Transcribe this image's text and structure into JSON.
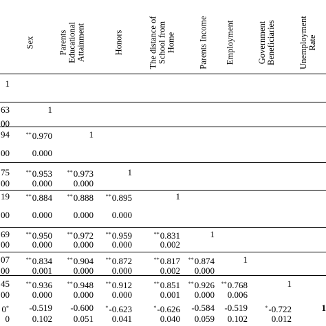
{
  "headers": [
    {
      "lines": [
        "Sex"
      ]
    },
    {
      "lines": [
        "Parents",
        "Educational",
        "Attainment"
      ]
    },
    {
      "lines": [
        "Honors"
      ]
    },
    {
      "lines": [
        "The distance of",
        "School from",
        "Home"
      ]
    },
    {
      "lines": [
        "Parents Income"
      ]
    },
    {
      "lines": [
        "Employment"
      ]
    },
    {
      "lines": [
        "Government",
        "Beneficiaries"
      ]
    },
    {
      "lines": [
        "Unemployment",
        "Rate"
      ]
    }
  ],
  "header_cut": "...",
  "rows": [
    [
      {
        "t": "1"
      }
    ],
    [
      {
        "t": "63"
      },
      {
        "t": "1"
      }
    ],
    [
      {
        "t": "00"
      }
    ],
    [
      {
        "t": "94"
      },
      {
        "m": "**",
        "t": "0.970"
      },
      {
        "t": "1"
      }
    ],
    [
      {
        "t": "00"
      },
      {
        "t": "0.000"
      }
    ],
    [
      {
        "t": "75"
      },
      {
        "m": "**",
        "t": "0.953"
      },
      {
        "m": "**",
        "t": "0.973"
      },
      {
        "t": "1"
      }
    ],
    [
      {
        "t": "00"
      },
      {
        "t": "0.000"
      },
      {
        "t": "0.000"
      }
    ],
    [
      {
        "t": "19"
      },
      {
        "m": "**",
        "t": "0.884"
      },
      {
        "m": "**",
        "t": "0.888"
      },
      {
        "m": "**",
        "t": "0.895"
      },
      {
        "t": "1"
      }
    ],
    [
      {
        "t": "00"
      },
      {
        "t": "0.000"
      },
      {
        "t": "0.000"
      },
      {
        "t": "0.000"
      }
    ],
    [
      {
        "t": "69"
      },
      {
        "m": "**",
        "t": "0.950"
      },
      {
        "m": "**",
        "t": "0.972"
      },
      {
        "m": "**",
        "t": "0.959"
      },
      {
        "m": "**",
        "t": "0.831"
      },
      {
        "t": "1"
      }
    ],
    [
      {
        "t": "00"
      },
      {
        "t": "0.000"
      },
      {
        "t": "0.000"
      },
      {
        "t": "0.000"
      },
      {
        "t": "0.002"
      }
    ],
    [
      {
        "t": "07"
      },
      {
        "m": "**",
        "t": "0.834"
      },
      {
        "m": "**",
        "t": "0.904"
      },
      {
        "m": "**",
        "t": "0.872"
      },
      {
        "m": "**",
        "t": "0.817"
      },
      {
        "m": "**",
        "t": "0.874"
      },
      {
        "t": "1"
      }
    ],
    [
      {
        "t": "00"
      },
      {
        "t": "0.001"
      },
      {
        "t": "0.000"
      },
      {
        "t": "0.000"
      },
      {
        "t": "0.002"
      },
      {
        "t": "0.000"
      }
    ],
    [
      {
        "t": "45"
      },
      {
        "m": "**",
        "t": "0.936"
      },
      {
        "m": "**",
        "t": "0.948"
      },
      {
        "m": "**",
        "t": "0.912"
      },
      {
        "m": "**",
        "t": "0.851"
      },
      {
        "m": "**",
        "t": "0.926"
      },
      {
        "m": "**",
        "t": "0.768"
      },
      {
        "t": "1"
      }
    ],
    [
      {
        "t": "00"
      },
      {
        "t": "0.000"
      },
      {
        "t": "0.000"
      },
      {
        "t": "0.000"
      },
      {
        "t": "0.001"
      },
      {
        "t": "0.000"
      },
      {
        "t": "0.006"
      }
    ],
    [
      {
        "t": "0",
        "m2": "*"
      },
      {
        "t": "-0.519"
      },
      {
        "t": "-0.600"
      },
      {
        "m": "*",
        "t": "-0.623"
      },
      {
        "m": "*",
        "t": "-0.626"
      },
      {
        "t": "-0.584"
      },
      {
        "t": "-0.519"
      },
      {
        "m": "*",
        "t": "-0.722"
      },
      {
        "t": "1",
        "bold": true
      }
    ],
    [
      {
        "t": "0"
      },
      {
        "t": "0.102"
      },
      {
        "t": "0.051"
      },
      {
        "t": "0.041"
      },
      {
        "t": "0.040"
      },
      {
        "t": "0.059"
      },
      {
        "t": "0.102"
      },
      {
        "t": "0.012"
      }
    ]
  ]
}
